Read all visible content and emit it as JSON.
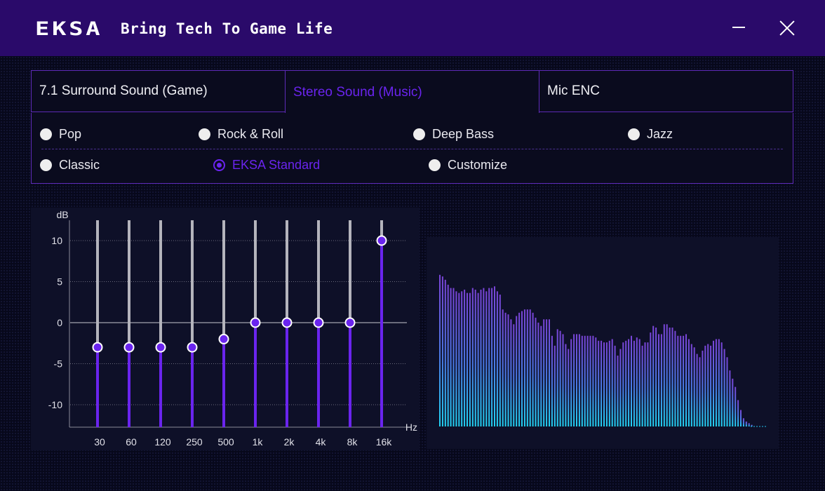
{
  "window": {
    "logo_text": "EKSA",
    "tagline": "Bring Tech To Game Life"
  },
  "tabs": [
    {
      "label": "7.1 Surround Sound (Game)",
      "active": false
    },
    {
      "label": "Stereo Sound (Music)",
      "active": true
    },
    {
      "label": "Mic ENC",
      "active": false
    }
  ],
  "presets": [
    {
      "label": "Pop",
      "selected": false
    },
    {
      "label": "Rock & Roll",
      "selected": false
    },
    {
      "label": "Deep Bass",
      "selected": false
    },
    {
      "label": "Jazz",
      "selected": false
    },
    {
      "label": "Classic",
      "selected": false
    },
    {
      "label": "EKSA Standard",
      "selected": true
    },
    {
      "label": "Customize",
      "selected": false
    }
  ],
  "colors": {
    "accent": "#6a24ee",
    "titlebar": "#2a0a6a",
    "slider_track": "#b4b4bc",
    "spectrum_top": "#7a44d8",
    "spectrum_bottom": "#22d4f4"
  },
  "equalizer": {
    "y_unit": "dB",
    "x_unit": "Hz",
    "y_ticks": [
      "10",
      "5",
      "0",
      "-5",
      "-10"
    ],
    "bands": [
      {
        "label": "30",
        "gain": -3
      },
      {
        "label": "60",
        "gain": -3
      },
      {
        "label": "120",
        "gain": -3
      },
      {
        "label": "250",
        "gain": -3
      },
      {
        "label": "500",
        "gain": -2
      },
      {
        "label": "1k",
        "gain": 0
      },
      {
        "label": "2k",
        "gain": 0
      },
      {
        "label": "4k",
        "gain": 0
      },
      {
        "label": "8k",
        "gain": 0
      },
      {
        "label": "16k",
        "gain": 10
      }
    ]
  },
  "spectrum": {
    "levels": [
      0.92,
      0.91,
      0.89,
      0.86,
      0.84,
      0.84,
      0.82,
      0.81,
      0.82,
      0.83,
      0.81,
      0.81,
      0.84,
      0.83,
      0.81,
      0.83,
      0.84,
      0.82,
      0.84,
      0.84,
      0.85,
      0.82,
      0.8,
      0.71,
      0.69,
      0.68,
      0.65,
      0.62,
      0.67,
      0.69,
      0.7,
      0.71,
      0.71,
      0.71,
      0.69,
      0.66,
      0.63,
      0.61,
      0.65,
      0.65,
      0.65,
      0.55,
      0.49,
      0.59,
      0.58,
      0.56,
      0.5,
      0.47,
      0.53,
      0.56,
      0.56,
      0.56,
      0.55,
      0.55,
      0.55,
      0.55,
      0.55,
      0.54,
      0.52,
      0.52,
      0.51,
      0.51,
      0.52,
      0.53,
      0.49,
      0.43,
      0.47,
      0.51,
      0.52,
      0.53,
      0.55,
      0.52,
      0.54,
      0.53,
      0.49,
      0.51,
      0.51,
      0.57,
      0.61,
      0.6,
      0.56,
      0.56,
      0.62,
      0.62,
      0.6,
      0.6,
      0.58,
      0.55,
      0.55,
      0.55,
      0.56,
      0.53,
      0.5,
      0.48,
      0.44,
      0.42,
      0.46,
      0.49,
      0.5,
      0.49,
      0.52,
      0.53,
      0.53,
      0.51,
      0.47,
      0.42,
      0.34,
      0.29,
      0.24,
      0.16,
      0.1,
      0.05,
      0.03,
      0.02,
      0.01
    ]
  }
}
